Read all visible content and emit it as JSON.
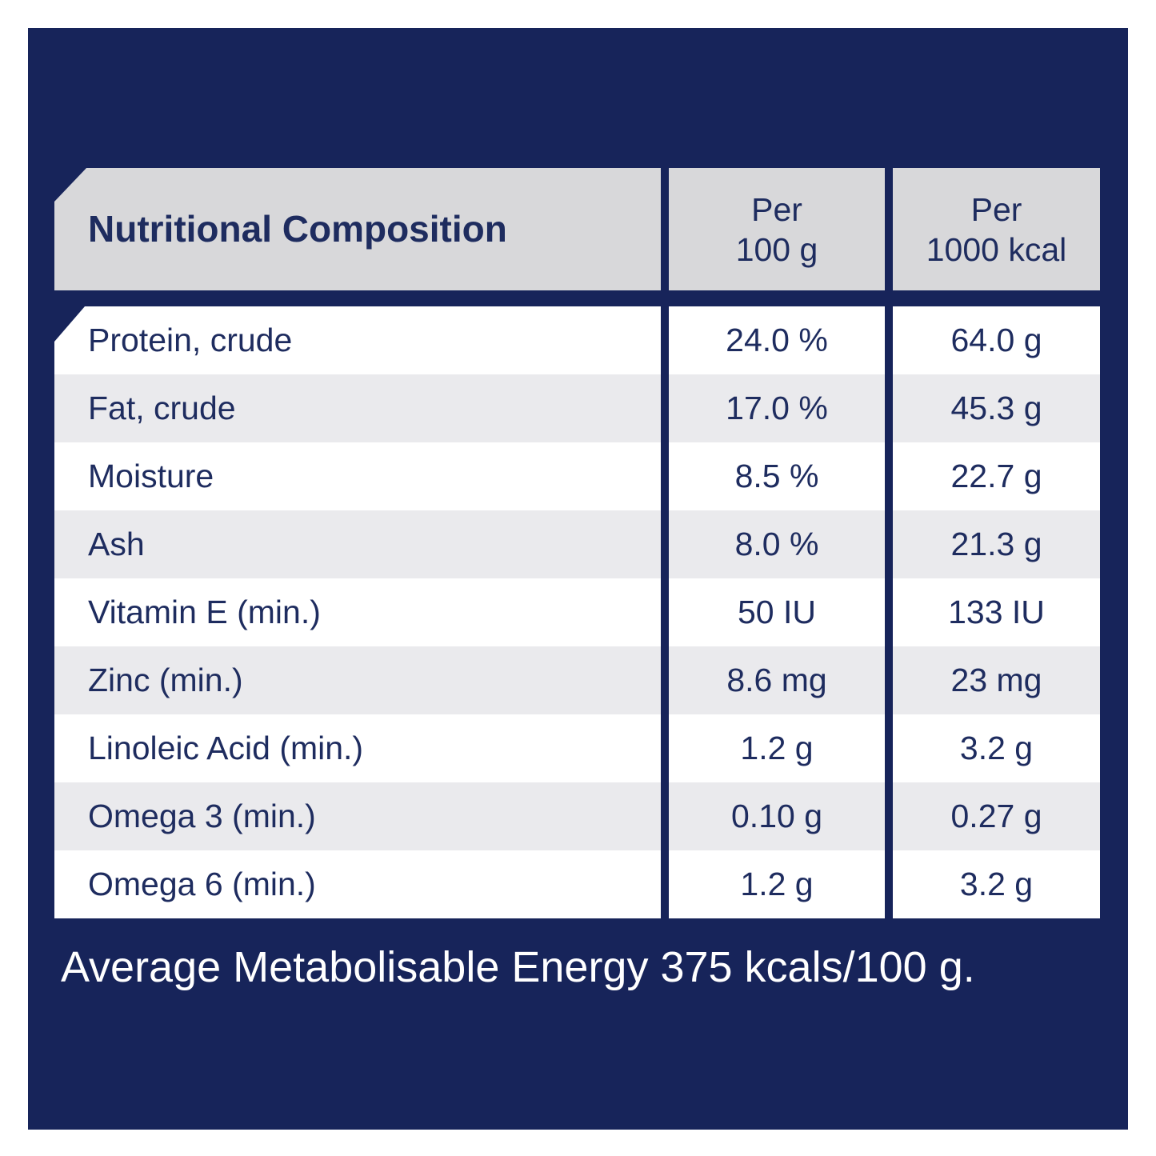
{
  "table": {
    "title": "Nutritional Composition",
    "columns": [
      {
        "line1": "Per",
        "line2": "100 g"
      },
      {
        "line1": "Per",
        "line2": "1000 kcal"
      }
    ],
    "rows": [
      {
        "label": "Protein, crude",
        "per_100g": "24.0 %",
        "per_1000kcal": "64.0 g"
      },
      {
        "label": "Fat, crude",
        "per_100g": "17.0 %",
        "per_1000kcal": "45.3 g"
      },
      {
        "label": "Moisture",
        "per_100g": "8.5 %",
        "per_1000kcal": "22.7 g"
      },
      {
        "label": "Ash",
        "per_100g": "8.0 %",
        "per_1000kcal": "21.3 g"
      },
      {
        "label": "Vitamin E (min.)",
        "per_100g": "50 IU",
        "per_1000kcal": "133 IU"
      },
      {
        "label": "Zinc (min.)",
        "per_100g": "8.6 mg",
        "per_1000kcal": "23 mg"
      },
      {
        "label": "Linoleic Acid (min.)",
        "per_100g": "1.2 g",
        "per_1000kcal": "3.2 g"
      },
      {
        "label": "Omega 3 (min.)",
        "per_100g": "0.10 g",
        "per_1000kcal": "0.27 g"
      },
      {
        "label": "Omega 6 (min.)",
        "per_100g": "1.2 g",
        "per_1000kcal": "3.2 g"
      }
    ]
  },
  "footer": {
    "text": "Average Metabolisable Energy 375 kcals/100 g."
  },
  "colors": {
    "panel_navy": "#17245a",
    "header_gray": "#d8d8da",
    "row_stripe_gray": "#eaeaed",
    "row_white": "#ffffff",
    "text_navy": "#1e2c5f",
    "footer_text": "#ffffff"
  }
}
